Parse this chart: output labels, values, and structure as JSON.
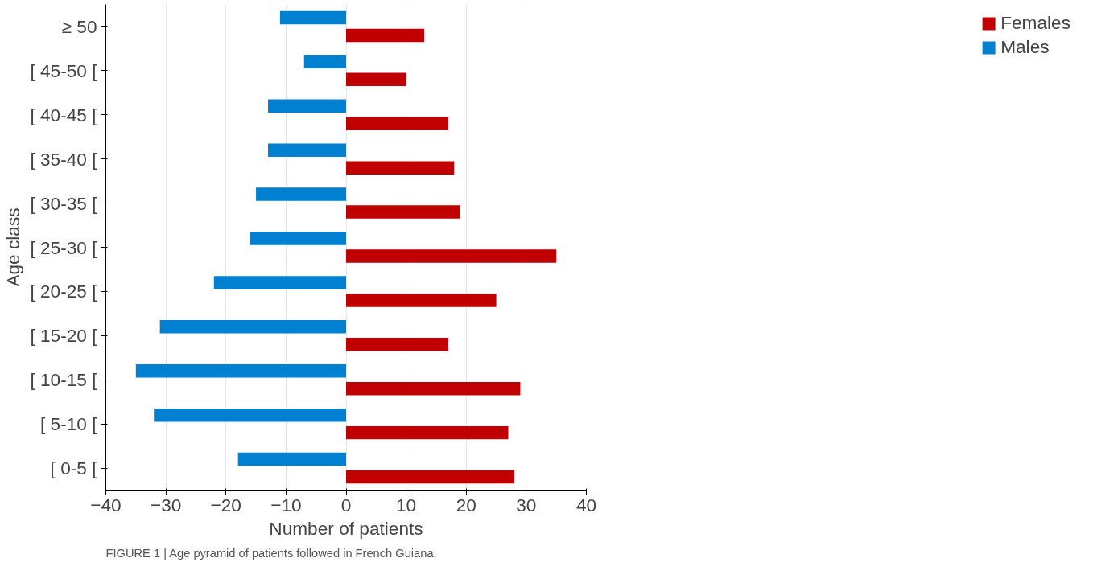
{
  "chart_data": {
    "type": "bar",
    "orientation": "horizontal",
    "xlabel": "Number of patients",
    "ylabel": "Age class",
    "categories": [
      "≥ 50",
      "[ 45-50 [",
      "[ 40-45 [",
      "[ 35-40 [",
      "[ 30-35 [",
      "[ 25-30 [",
      "[ 20-25 [",
      "[ 15-20 [",
      "[ 10-15 [",
      "[ 5-10 [",
      "[ 0-5 ["
    ],
    "series": [
      {
        "name": "Females",
        "color": "#c00000",
        "values": [
          13,
          10,
          17,
          18,
          19,
          35,
          25,
          17,
          29,
          27,
          28
        ]
      },
      {
        "name": "Males",
        "color": "#0080d0",
        "values": [
          -11,
          -7,
          -13,
          -13,
          -15,
          -16,
          -22,
          -31,
          -35,
          -32,
          -18
        ]
      }
    ],
    "xlim": [
      -40,
      40
    ],
    "xticks": [
      -40,
      -30,
      -20,
      -10,
      0,
      10,
      20,
      30,
      40
    ],
    "grid": "x",
    "legend": "right",
    "annotations": [
      "FIGURE 1 | Age pyramid of patients followed in French Guiana."
    ]
  }
}
